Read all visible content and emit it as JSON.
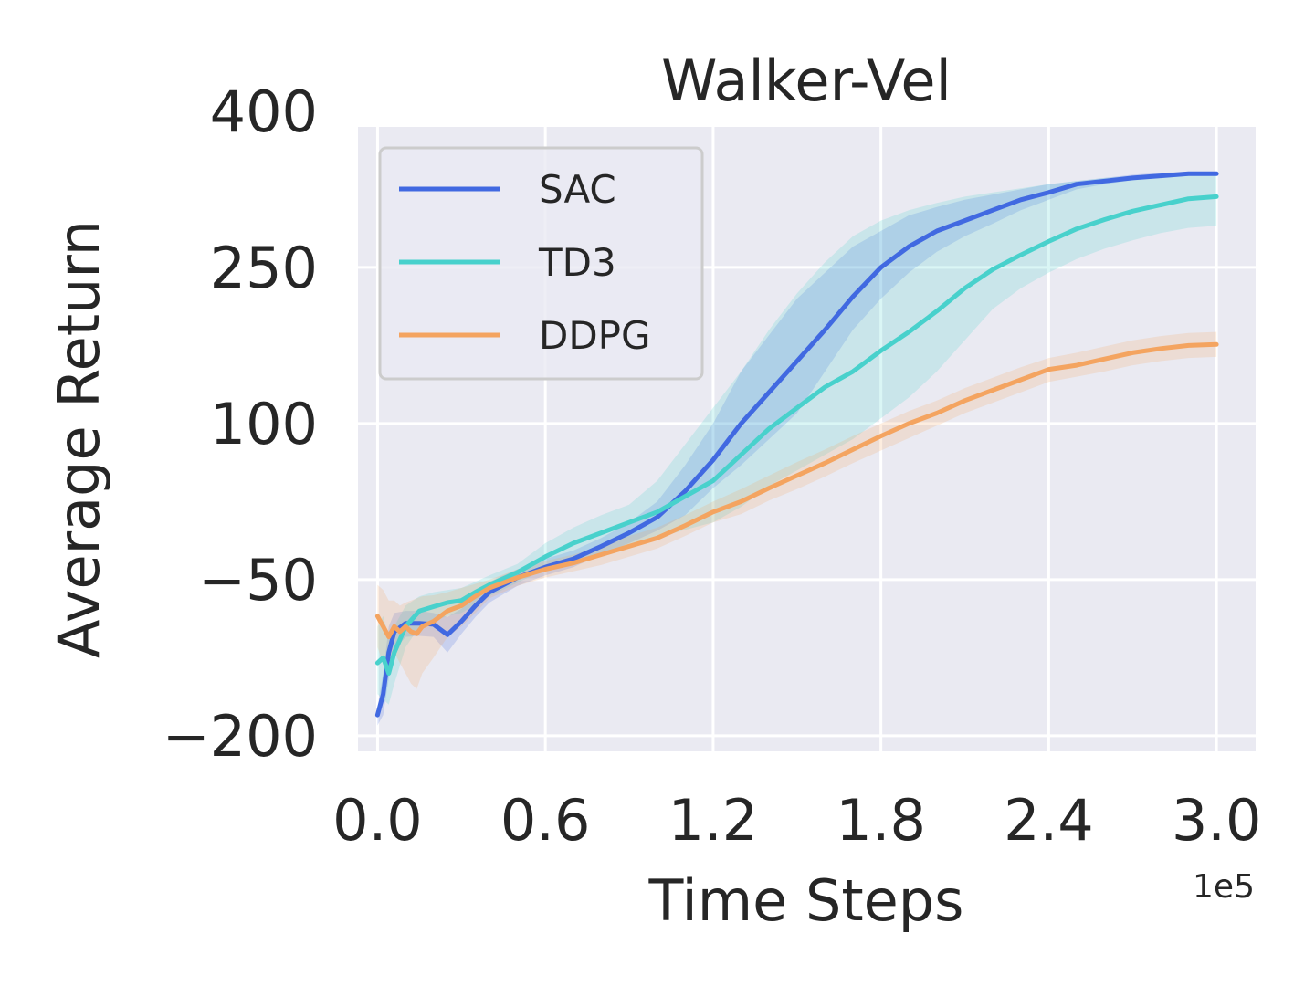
{
  "chart_data": {
    "type": "line",
    "title": "Walker-Vel",
    "xlabel": "Time Steps",
    "ylabel": "Average Return",
    "x_offset_label": "1e5",
    "xlim": [
      -0.07,
      3.14
    ],
    "ylim": [
      -215,
      385
    ],
    "x_ticks": [
      0.0,
      0.6,
      1.2,
      1.8,
      2.4,
      3.0
    ],
    "x_tick_labels": [
      "0.0",
      "0.6",
      "1.2",
      "1.8",
      "2.4",
      "3.0"
    ],
    "y_ticks": [
      -200,
      -50,
      100,
      250,
      400
    ],
    "y_tick_labels": [
      "−200",
      "−50",
      "100",
      "250",
      "400"
    ],
    "grid": true,
    "legend_position": "upper-left",
    "colors": {
      "background": "#eaeaf2",
      "grid": "#ffffff",
      "text": "#262626"
    },
    "series": [
      {
        "name": "SAC",
        "color": "#4169e1",
        "x": [
          0.0,
          0.02,
          0.04,
          0.06,
          0.1,
          0.15,
          0.2,
          0.25,
          0.3,
          0.35,
          0.4,
          0.5,
          0.6,
          0.7,
          0.8,
          0.9,
          1.0,
          1.1,
          1.2,
          1.3,
          1.4,
          1.5,
          1.6,
          1.7,
          1.8,
          1.9,
          2.0,
          2.1,
          2.2,
          2.3,
          2.4,
          2.5,
          2.6,
          2.7,
          2.8,
          2.9,
          3.0
        ],
        "y": [
          -180,
          -160,
          -120,
          -100,
          -92,
          -92,
          -93,
          -103,
          -90,
          -75,
          -62,
          -48,
          -38,
          -30,
          -18,
          -5,
          10,
          35,
          65,
          100,
          130,
          160,
          190,
          222,
          250,
          270,
          285,
          295,
          305,
          315,
          322,
          330,
          333,
          336,
          338,
          340,
          340
        ],
        "upper": [
          -172,
          -140,
          -95,
          -82,
          -80,
          -80,
          -82,
          -86,
          -78,
          -64,
          -52,
          -40,
          -30,
          -22,
          -10,
          5,
          25,
          60,
          100,
          150,
          185,
          220,
          245,
          270,
          285,
          300,
          308,
          315,
          320,
          325,
          330,
          333,
          336,
          339,
          341,
          342,
          342
        ],
        "lower": [
          -190,
          -180,
          -145,
          -118,
          -105,
          -104,
          -105,
          -120,
          -102,
          -86,
          -72,
          -56,
          -46,
          -38,
          -26,
          -15,
          -3,
          12,
          38,
          60,
          85,
          110,
          150,
          190,
          220,
          245,
          265,
          280,
          292,
          305,
          315,
          325,
          330,
          334,
          336,
          338,
          338
        ]
      },
      {
        "name": "TD3",
        "color": "#48d1cc",
        "x": [
          0.0,
          0.02,
          0.04,
          0.06,
          0.1,
          0.15,
          0.2,
          0.25,
          0.3,
          0.35,
          0.4,
          0.5,
          0.6,
          0.7,
          0.8,
          0.9,
          1.0,
          1.1,
          1.2,
          1.3,
          1.4,
          1.5,
          1.6,
          1.7,
          1.8,
          1.9,
          2.0,
          2.1,
          2.2,
          2.3,
          2.4,
          2.5,
          2.6,
          2.7,
          2.8,
          2.9,
          3.0
        ],
        "y": [
          -130,
          -125,
          -140,
          -120,
          -95,
          -80,
          -76,
          -72,
          -70,
          -62,
          -55,
          -43,
          -28,
          -15,
          -5,
          5,
          15,
          30,
          45,
          70,
          95,
          115,
          135,
          150,
          170,
          188,
          208,
          230,
          248,
          262,
          275,
          287,
          296,
          304,
          310,
          316,
          318
        ],
        "upper": [
          -95,
          -85,
          -105,
          -95,
          -75,
          -66,
          -62,
          -60,
          -58,
          -52,
          -46,
          -35,
          -15,
          0,
          12,
          22,
          45,
          80,
          115,
          150,
          190,
          225,
          255,
          280,
          295,
          305,
          312,
          318,
          322,
          326,
          330,
          333,
          336,
          338,
          340,
          341,
          342
        ],
        "lower": [
          -160,
          -165,
          -170,
          -150,
          -115,
          -95,
          -90,
          -85,
          -82,
          -74,
          -66,
          -53,
          -40,
          -32,
          -24,
          -16,
          -10,
          -2,
          5,
          20,
          40,
          55,
          70,
          85,
          105,
          125,
          150,
          180,
          210,
          230,
          245,
          258,
          268,
          276,
          283,
          288,
          290
        ]
      },
      {
        "name": "DDPG",
        "color": "#f4a460",
        "x": [
          0.0,
          0.02,
          0.04,
          0.06,
          0.08,
          0.1,
          0.12,
          0.14,
          0.16,
          0.2,
          0.25,
          0.3,
          0.35,
          0.4,
          0.5,
          0.6,
          0.7,
          0.8,
          0.9,
          1.0,
          1.1,
          1.2,
          1.3,
          1.4,
          1.5,
          1.6,
          1.7,
          1.8,
          1.9,
          2.0,
          2.1,
          2.2,
          2.3,
          2.4,
          2.5,
          2.6,
          2.7,
          2.8,
          2.9,
          3.0
        ],
        "y": [
          -85,
          -95,
          -105,
          -95,
          -100,
          -95,
          -100,
          -102,
          -95,
          -90,
          -80,
          -75,
          -66,
          -58,
          -48,
          -40,
          -34,
          -26,
          -18,
          -10,
          2,
          15,
          25,
          38,
          50,
          62,
          75,
          88,
          100,
          110,
          122,
          132,
          142,
          152,
          156,
          162,
          168,
          172,
          175,
          176
        ],
        "upper": [
          -55,
          -60,
          -70,
          -70,
          -75,
          -72,
          -70,
          -68,
          -66,
          -65,
          -62,
          -58,
          -54,
          -50,
          -40,
          -32,
          -26,
          -18,
          -8,
          0,
          12,
          25,
          37,
          50,
          63,
          75,
          88,
          100,
          112,
          122,
          134,
          144,
          154,
          163,
          168,
          174,
          180,
          184,
          187,
          188
        ],
        "lower": [
          -115,
          -130,
          -135,
          -120,
          -130,
          -140,
          -150,
          -155,
          -140,
          -125,
          -105,
          -95,
          -82,
          -68,
          -56,
          -48,
          -42,
          -36,
          -28,
          -20,
          -8,
          5,
          13,
          26,
          37,
          49,
          62,
          74,
          86,
          98,
          110,
          120,
          130,
          140,
          145,
          150,
          156,
          160,
          163,
          164
        ]
      }
    ]
  }
}
